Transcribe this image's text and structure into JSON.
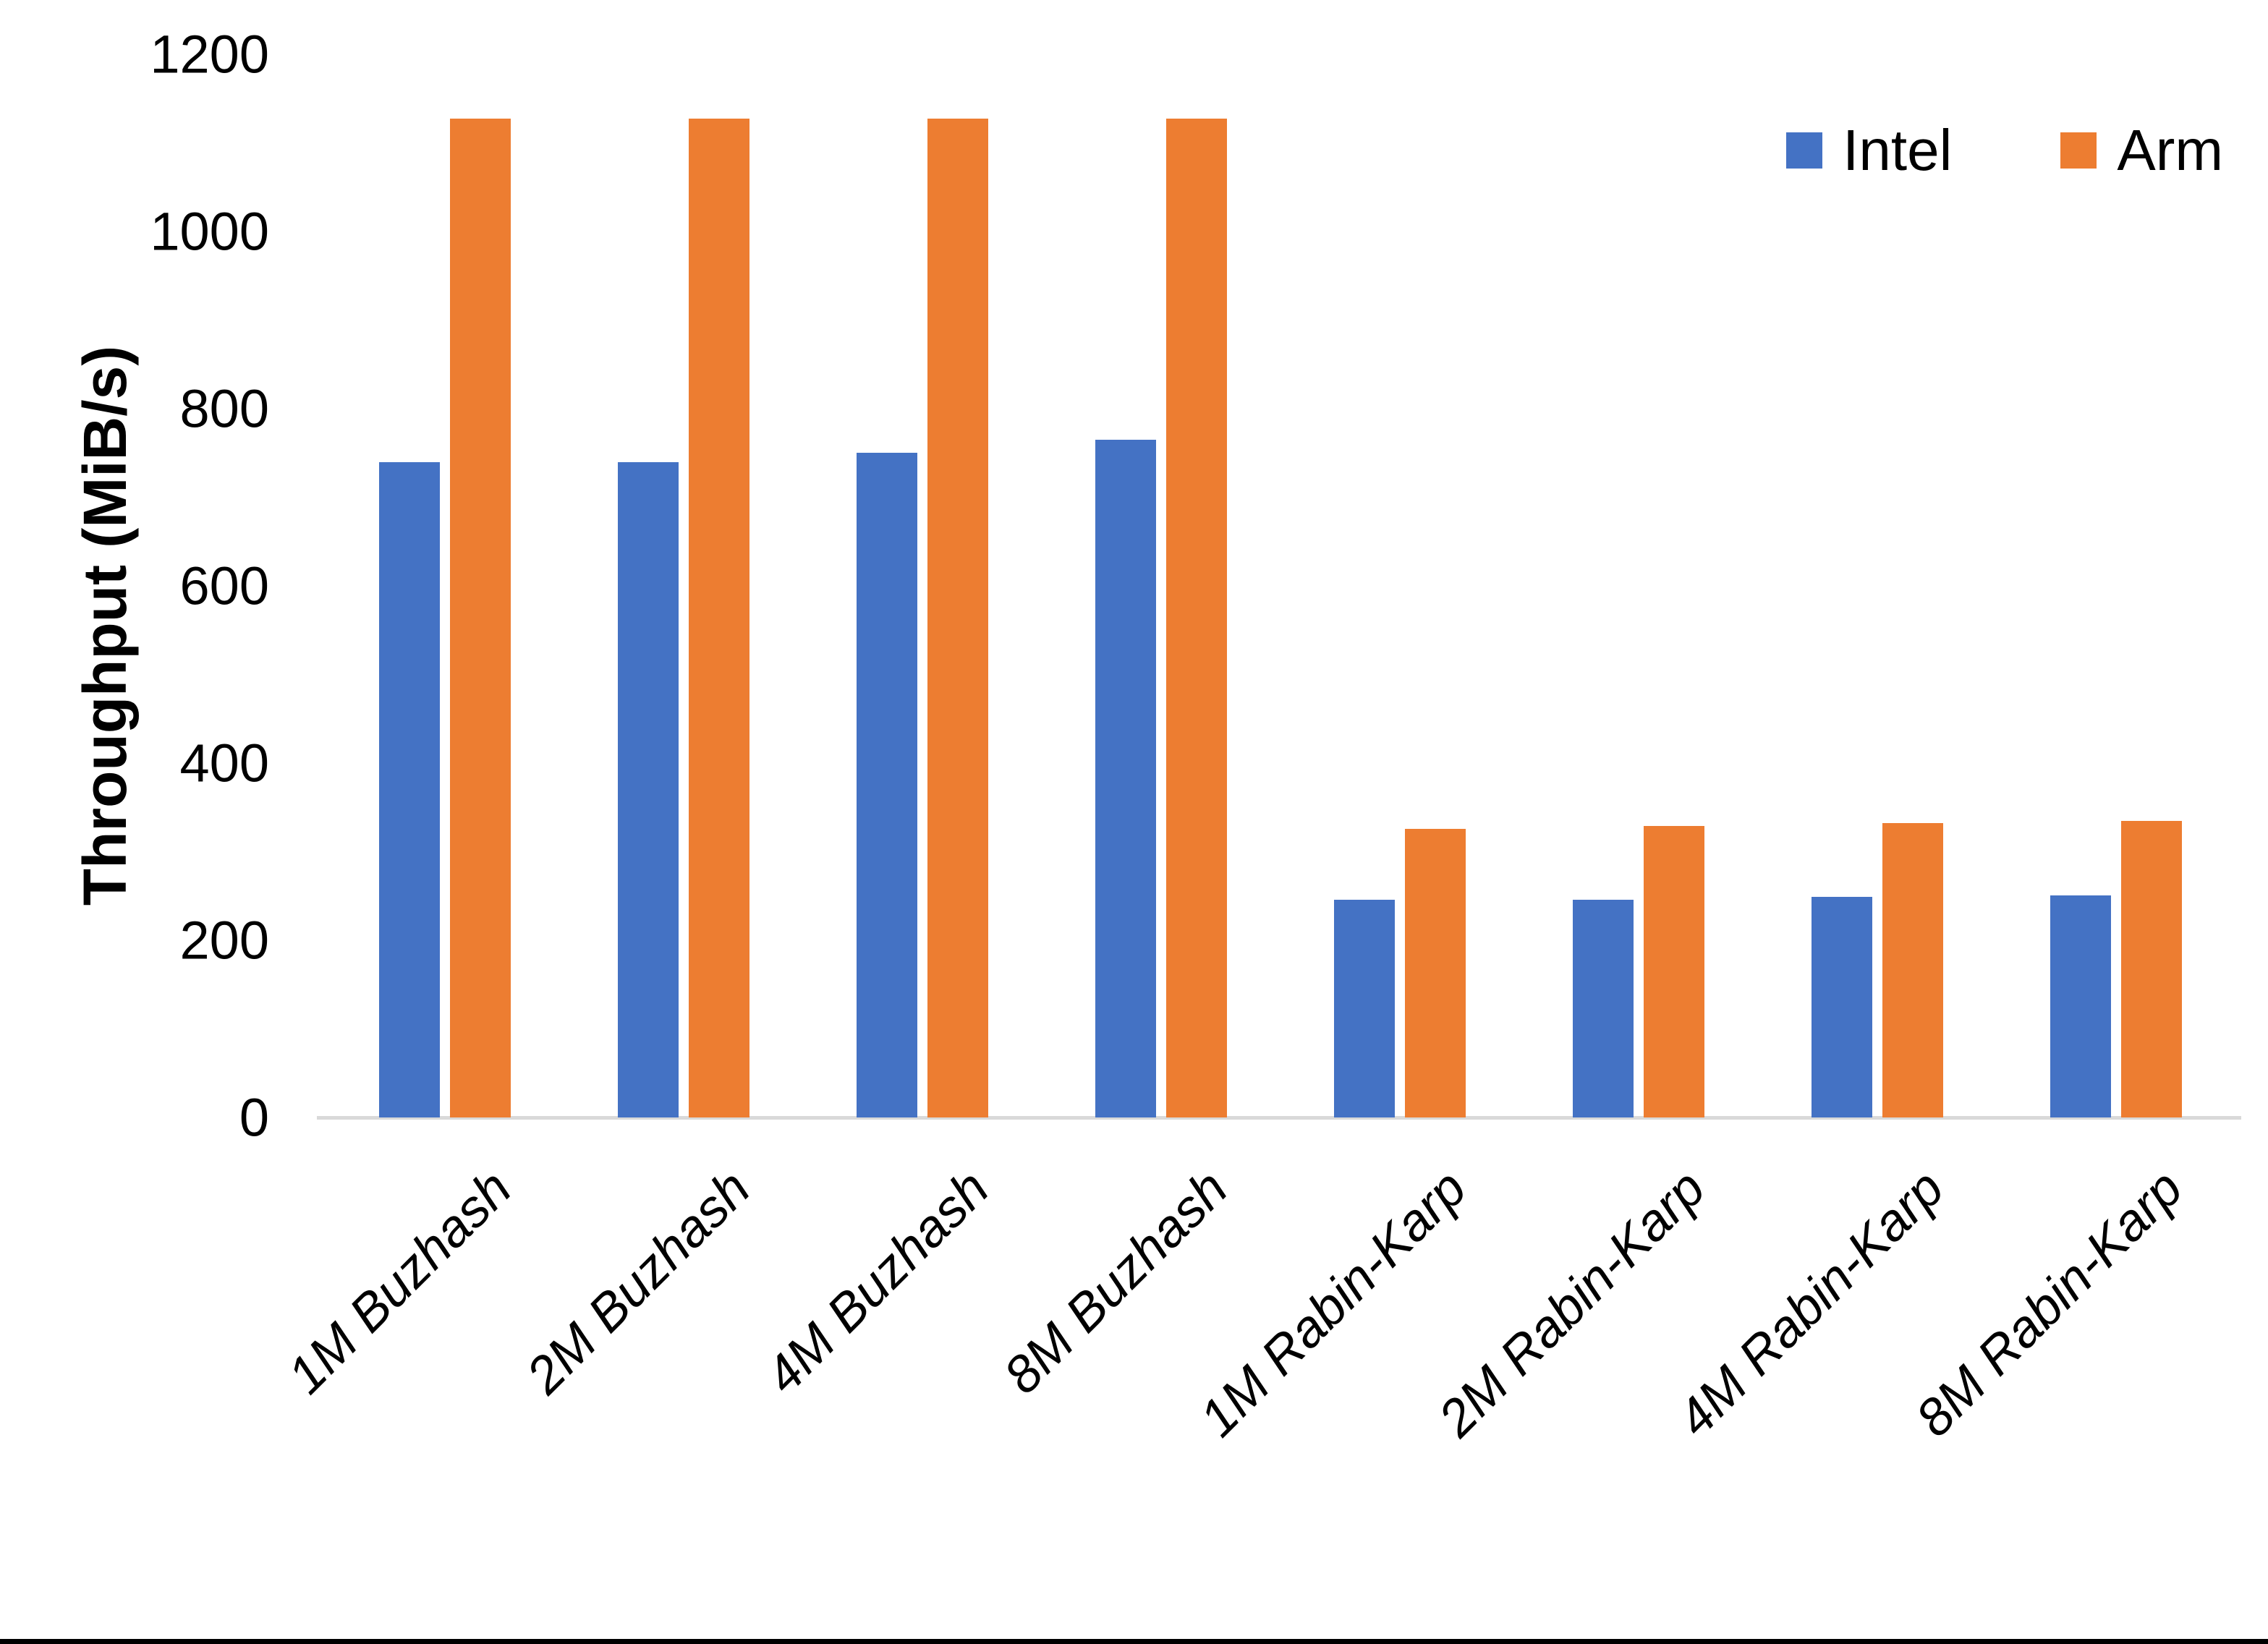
{
  "page": {
    "background": "#FFFFFF",
    "bottom_border_color": "#000000",
    "axis_line_color": "#D9D9D9"
  },
  "chart_data": {
    "type": "bar",
    "title": "",
    "xlabel": "",
    "ylabel": "Throughput (MiB/s)",
    "categories": [
      "1M Buzhash",
      "2M Buzhash",
      "4M Buzhash",
      "8M Buzhash",
      "1M Rabin-Karp",
      "2M Rabin-Karp",
      "4M Rabin-Karp",
      "8M Rabin-Karp"
    ],
    "series": [
      {
        "name": "Intel",
        "color": "#4472C4",
        "values": [
          740,
          740,
          750,
          765,
          246,
          246,
          249,
          251
        ]
      },
      {
        "name": "Arm",
        "color": "#ED7D31",
        "values": [
          1127,
          1127,
          1127,
          1127,
          326,
          329,
          332,
          335
        ]
      }
    ],
    "ylim": [
      0,
      1200
    ],
    "yticks": [
      0,
      200,
      400,
      600,
      800,
      1000,
      1200
    ],
    "grid": false,
    "legend_position": "top-right"
  }
}
